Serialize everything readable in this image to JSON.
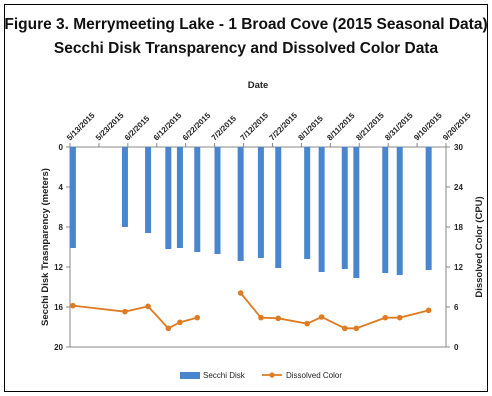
{
  "chart_data": {
    "type": "bar",
    "title": "Figure 3. Merrymeeting Lake - 1 Broad Cove (2015 Seasonal Data)",
    "subtitle": "Secchi Disk Transparency and Dissolved Color Data",
    "xlabel": "Date",
    "ylabel_left": "Secchi Disk Trasnparency (meters)",
    "ylabel_right": "Dissolved Color (CPU)",
    "x_start": "5/13/2015",
    "x_end": "9/20/2015",
    "x_ticks": [
      "5/13/2015",
      "5/23/2015",
      "6/2/2015",
      "6/12/2015",
      "6/22/2015",
      "7/2/2015",
      "7/12/2015",
      "7/22/2015",
      "8/1/2015",
      "8/11/2015",
      "8/21/2015",
      "8/31/2015",
      "9/10/2015",
      "9/20/2015"
    ],
    "ylim_left": [
      0,
      20
    ],
    "yticks_left": [
      0,
      4,
      8,
      12,
      16,
      20
    ],
    "ylim_right": [
      0,
      30
    ],
    "yticks_right": [
      0,
      6,
      12,
      18,
      24,
      30
    ],
    "left_axis_inverted": true,
    "series": [
      {
        "name": "Secchi Disk",
        "type": "bar",
        "axis": "left",
        "color": "#4a86cf",
        "points": [
          {
            "date": "5/14/2015",
            "value": 10.1
          },
          {
            "date": "6/1/2015",
            "value": 8.0
          },
          {
            "date": "6/9/2015",
            "value": 8.6
          },
          {
            "date": "6/16/2015",
            "value": 10.2
          },
          {
            "date": "6/20/2015",
            "value": 10.1
          },
          {
            "date": "6/26/2015",
            "value": 10.5
          },
          {
            "date": "7/3/2015",
            "value": 10.7
          },
          {
            "date": "7/11/2015",
            "value": 11.4
          },
          {
            "date": "7/18/2015",
            "value": 11.1
          },
          {
            "date": "7/24/2015",
            "value": 12.1
          },
          {
            "date": "8/3/2015",
            "value": 11.2
          },
          {
            "date": "8/8/2015",
            "value": 12.5
          },
          {
            "date": "8/16/2015",
            "value": 12.2
          },
          {
            "date": "8/20/2015",
            "value": 13.1
          },
          {
            "date": "8/30/2015",
            "value": 12.6
          },
          {
            "date": "9/4/2015",
            "value": 12.8
          },
          {
            "date": "9/14/2015",
            "value": 12.3
          }
        ]
      },
      {
        "name": "Dissolved Color",
        "type": "line",
        "axis": "right",
        "color": "#e07b22",
        "segments": [
          [
            {
              "date": "5/14/2015",
              "value": 6.2
            },
            {
              "date": "6/1/2015",
              "value": 5.3
            },
            {
              "date": "6/9/2015",
              "value": 6.1
            },
            {
              "date": "6/16/2015",
              "value": 2.8
            },
            {
              "date": "6/20/2015",
              "value": 3.7
            },
            {
              "date": "6/26/2015",
              "value": 4.4
            }
          ],
          [
            {
              "date": "7/11/2015",
              "value": 8.1
            },
            {
              "date": "7/18/2015",
              "value": 4.4
            },
            {
              "date": "7/24/2015",
              "value": 4.3
            },
            {
              "date": "8/3/2015",
              "value": 3.5
            },
            {
              "date": "8/8/2015",
              "value": 4.5
            },
            {
              "date": "8/16/2015",
              "value": 2.8
            },
            {
              "date": "8/20/2015",
              "value": 2.8
            },
            {
              "date": "8/30/2015",
              "value": 4.4
            },
            {
              "date": "9/4/2015",
              "value": 4.4
            },
            {
              "date": "9/14/2015",
              "value": 5.5
            }
          ]
        ]
      }
    ],
    "legend": {
      "position": "bottom",
      "items": [
        "Secchi Disk",
        "Dissolved Color"
      ]
    },
    "grid": false
  }
}
